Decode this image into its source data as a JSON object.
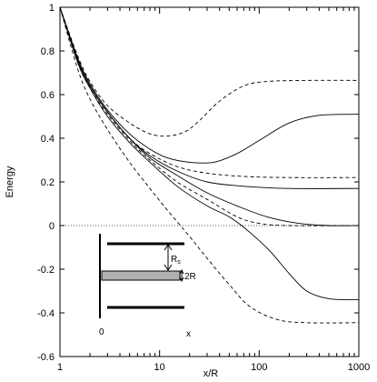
{
  "chart_data": {
    "type": "line",
    "xlabel": "x/R",
    "ylabel": "Energy",
    "xscale": "log",
    "xlim": [
      1,
      1000
    ],
    "ylim": [
      -0.6,
      1.0
    ],
    "x_ticks": [
      {
        "v": 1,
        "label": "1"
      },
      {
        "v": 10,
        "label": "10"
      },
      {
        "v": 100,
        "label": "100"
      },
      {
        "v": 1000,
        "label": "1000"
      }
    ],
    "y_ticks": [
      {
        "v": 1.0,
        "label": "1"
      },
      {
        "v": 0.8,
        "label": "0.8"
      },
      {
        "v": 0.6,
        "label": "0.6"
      },
      {
        "v": 0.4,
        "label": "0.4"
      },
      {
        "v": 0.2,
        "label": "0.2"
      },
      {
        "v": 0.0,
        "label": "0"
      },
      {
        "v": -0.2,
        "label": "-0.2"
      },
      {
        "v": -0.4,
        "label": "-0.4"
      },
      {
        "v": -0.6,
        "label": "-0.6"
      }
    ],
    "reference_line": {
      "y": 0,
      "style": "dotted"
    },
    "series": [
      {
        "style": "dashed",
        "points": [
          [
            1,
            1.0
          ],
          [
            1.5,
            0.78
          ],
          [
            2,
            0.66
          ],
          [
            3,
            0.55
          ],
          [
            5,
            0.47
          ],
          [
            8,
            0.42
          ],
          [
            12,
            0.41
          ],
          [
            18,
            0.43
          ],
          [
            25,
            0.48
          ],
          [
            40,
            0.57
          ],
          [
            70,
            0.64
          ],
          [
            120,
            0.66
          ],
          [
            300,
            0.665
          ],
          [
            1000,
            0.665
          ]
        ]
      },
      {
        "style": "solid",
        "points": [
          [
            1,
            1.0
          ],
          [
            1.5,
            0.77
          ],
          [
            2,
            0.65
          ],
          [
            3,
            0.53
          ],
          [
            5,
            0.42
          ],
          [
            8,
            0.35
          ],
          [
            12,
            0.31
          ],
          [
            20,
            0.29
          ],
          [
            35,
            0.29
          ],
          [
            60,
            0.33
          ],
          [
            100,
            0.39
          ],
          [
            200,
            0.47
          ],
          [
            400,
            0.505
          ],
          [
            1000,
            0.51
          ]
        ]
      },
      {
        "style": "dashed",
        "points": [
          [
            1,
            1.0
          ],
          [
            1.5,
            0.76
          ],
          [
            2,
            0.64
          ],
          [
            3,
            0.52
          ],
          [
            5,
            0.4
          ],
          [
            8,
            0.33
          ],
          [
            15,
            0.27
          ],
          [
            30,
            0.24
          ],
          [
            70,
            0.225
          ],
          [
            200,
            0.22
          ],
          [
            1000,
            0.22
          ]
        ]
      },
      {
        "style": "solid",
        "points": [
          [
            1,
            1.0
          ],
          [
            1.5,
            0.76
          ],
          [
            2,
            0.64
          ],
          [
            3,
            0.52
          ],
          [
            5,
            0.4
          ],
          [
            8,
            0.32
          ],
          [
            15,
            0.25
          ],
          [
            30,
            0.2
          ],
          [
            70,
            0.18
          ],
          [
            200,
            0.17
          ],
          [
            1000,
            0.17
          ]
        ]
      },
      {
        "style": "solid",
        "points": [
          [
            1,
            1.0
          ],
          [
            1.5,
            0.76
          ],
          [
            2,
            0.64
          ],
          [
            3,
            0.52
          ],
          [
            5,
            0.4
          ],
          [
            8,
            0.31
          ],
          [
            15,
            0.23
          ],
          [
            30,
            0.15
          ],
          [
            60,
            0.09
          ],
          [
            120,
            0.04
          ],
          [
            250,
            0.01
          ],
          [
            500,
            0.0
          ],
          [
            1000,
            0.0
          ]
        ]
      },
      {
        "style": "dashed",
        "points": [
          [
            1,
            1.0
          ],
          [
            1.5,
            0.75
          ],
          [
            2,
            0.63
          ],
          [
            3,
            0.51
          ],
          [
            5,
            0.39
          ],
          [
            8,
            0.3
          ],
          [
            15,
            0.2
          ],
          [
            30,
            0.12
          ],
          [
            60,
            0.04
          ],
          [
            100,
            0.01
          ],
          [
            200,
            0.0
          ],
          [
            1000,
            0.0
          ]
        ]
      },
      {
        "style": "solid",
        "points": [
          [
            1,
            1.0
          ],
          [
            1.5,
            0.75
          ],
          [
            2,
            0.63
          ],
          [
            3,
            0.5
          ],
          [
            5,
            0.38
          ],
          [
            8,
            0.29
          ],
          [
            15,
            0.18
          ],
          [
            30,
            0.09
          ],
          [
            50,
            0.04
          ],
          [
            80,
            -0.03
          ],
          [
            130,
            -0.12
          ],
          [
            200,
            -0.22
          ],
          [
            300,
            -0.3
          ],
          [
            500,
            -0.335
          ],
          [
            1000,
            -0.34
          ]
        ]
      },
      {
        "style": "dashed",
        "points": [
          [
            1,
            1.0
          ],
          [
            1.5,
            0.72
          ],
          [
            2,
            0.58
          ],
          [
            3,
            0.44
          ],
          [
            5,
            0.29
          ],
          [
            8,
            0.17
          ],
          [
            12,
            0.07
          ],
          [
            20,
            -0.05
          ],
          [
            30,
            -0.15
          ],
          [
            50,
            -0.27
          ],
          [
            80,
            -0.37
          ],
          [
            150,
            -0.43
          ],
          [
            300,
            -0.445
          ],
          [
            1000,
            -0.445
          ]
        ]
      }
    ]
  },
  "inset": {
    "origin_label": "0",
    "axis_label": "x",
    "rs_label": "R",
    "rs_sub": "s",
    "thickness_label": "2R"
  }
}
